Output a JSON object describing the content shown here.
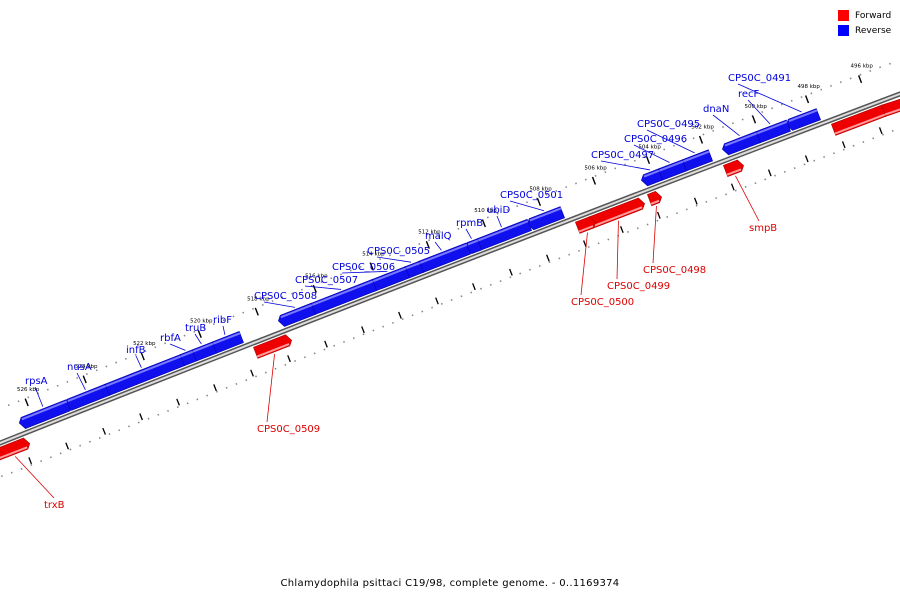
{
  "caption": "Chlamydophila psittaci C19/98, complete genome. - 0..1169374",
  "legend": [
    {
      "label": "Forward",
      "color": "#ff0000"
    },
    {
      "label": "Reverse",
      "color": "#0000ff"
    }
  ],
  "colors": {
    "forward": "#ee0000",
    "reverse": "#1010ee",
    "backbone": "#888888"
  },
  "ticks": [
    "496 kbp",
    "498 kbp",
    "500 kbp",
    "502 kbp",
    "504 kbp",
    "506 kbp",
    "508 kbp",
    "510 kbp",
    "512 kbp",
    "514 kbp",
    "516 kbp",
    "518 kbp",
    "520 kbp",
    "522 kbp",
    "524 kbp",
    "526 kbp"
  ],
  "genes": [
    {
      "name": "CPS0C_0491",
      "strand": "reverse"
    },
    {
      "name": "recF",
      "strand": "reverse"
    },
    {
      "name": "dnaN",
      "strand": "reverse"
    },
    {
      "name": "CPS0C_0495",
      "strand": "reverse"
    },
    {
      "name": "CPS0C_0496",
      "strand": "reverse"
    },
    {
      "name": "CPS0C_0497",
      "strand": "reverse"
    },
    {
      "name": "smpB",
      "strand": "forward"
    },
    {
      "name": "CPS0C_0498",
      "strand": "forward"
    },
    {
      "name": "CPS0C_0499",
      "strand": "forward"
    },
    {
      "name": "CPS0C_0500",
      "strand": "forward"
    },
    {
      "name": "CPS0C_0501",
      "strand": "reverse"
    },
    {
      "name": "ubiD",
      "strand": "reverse"
    },
    {
      "name": "rpmB",
      "strand": "reverse"
    },
    {
      "name": "malQ",
      "strand": "reverse"
    },
    {
      "name": "CPS0C_0505",
      "strand": "reverse"
    },
    {
      "name": "CPS0C_0506",
      "strand": "reverse"
    },
    {
      "name": "CPS0C_0507",
      "strand": "reverse"
    },
    {
      "name": "CPS0C_0508",
      "strand": "reverse"
    },
    {
      "name": "CPS0C_0509",
      "strand": "forward"
    },
    {
      "name": "ribF",
      "strand": "reverse"
    },
    {
      "name": "truB",
      "strand": "reverse"
    },
    {
      "name": "rbfA",
      "strand": "reverse"
    },
    {
      "name": "infB",
      "strand": "reverse"
    },
    {
      "name": "nusA",
      "strand": "reverse"
    },
    {
      "name": "rpsA",
      "strand": "reverse"
    },
    {
      "name": "trxB",
      "strand": "forward"
    }
  ]
}
